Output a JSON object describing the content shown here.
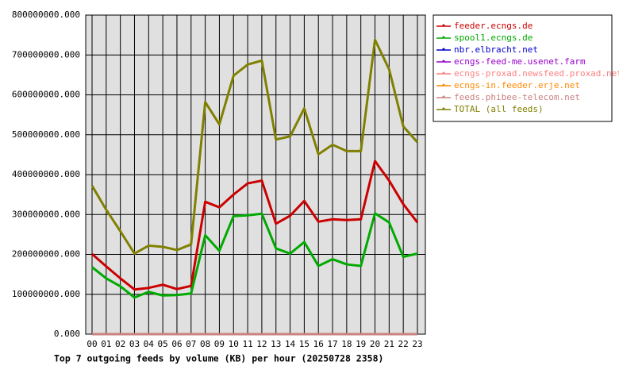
{
  "chart_data": {
    "type": "line",
    "title": "Top 7 outgoing feeds by volume (KB) per hour (20250728 2358)",
    "categories": [
      "00",
      "01",
      "02",
      "03",
      "04",
      "05",
      "06",
      "07",
      "08",
      "09",
      "10",
      "11",
      "12",
      "13",
      "14",
      "15",
      "16",
      "17",
      "18",
      "19",
      "20",
      "21",
      "22",
      "23"
    ],
    "series": [
      {
        "name": "feeder.ecngs.de",
        "color": "#cc0000",
        "values": [
          201000000,
          170000000,
          140000000,
          112000000,
          116000000,
          124000000,
          113000000,
          121000000,
          332000000,
          318000000,
          350000000,
          378000000,
          385000000,
          277000000,
          297000000,
          334000000,
          282000000,
          288000000,
          286000000,
          288000000,
          434000000,
          385000000,
          326000000,
          280000000
        ]
      },
      {
        "name": "spool1.ecngs.de",
        "color": "#00aa00",
        "values": [
          168000000,
          140000000,
          120000000,
          92000000,
          106000000,
          97000000,
          98000000,
          102000000,
          248000000,
          209000000,
          296000000,
          298000000,
          302000000,
          215000000,
          202000000,
          231000000,
          171000000,
          188000000,
          175000000,
          171000000,
          303000000,
          280000000,
          194000000,
          202000000
        ]
      },
      {
        "name": "nbr.elbracht.net",
        "color": "#0000cc",
        "values": [
          0,
          0,
          0,
          0,
          0,
          0,
          0,
          0,
          0,
          0,
          0,
          0,
          0,
          0,
          0,
          0,
          0,
          0,
          0,
          0,
          0,
          0,
          0,
          0
        ]
      },
      {
        "name": "ecngs-feed-me.usenet.farm",
        "color": "#9900cc",
        "values": [
          0,
          0,
          0,
          0,
          0,
          0,
          0,
          0,
          0,
          0,
          0,
          0,
          0,
          0,
          0,
          0,
          0,
          0,
          0,
          0,
          0,
          0,
          0,
          0
        ]
      },
      {
        "name": "ecngs-proxad.newsfeed.proxad.net",
        "color": "#ff8080",
        "values": [
          0,
          0,
          0,
          0,
          0,
          0,
          0,
          0,
          0,
          0,
          0,
          0,
          0,
          0,
          0,
          0,
          0,
          0,
          0,
          0,
          0,
          0,
          0,
          0
        ]
      },
      {
        "name": "ecngs-in.feeder.erje.net",
        "color": "#ff8800",
        "values": [
          0,
          0,
          0,
          0,
          0,
          0,
          0,
          0,
          0,
          0,
          0,
          0,
          0,
          0,
          0,
          0,
          0,
          0,
          0,
          0,
          0,
          0,
          0,
          0
        ]
      },
      {
        "name": "feeds.phibee-telecom.net",
        "color": "#cc8080",
        "values": [
          0,
          0,
          0,
          0,
          0,
          0,
          0,
          0,
          0,
          0,
          0,
          0,
          0,
          0,
          0,
          0,
          0,
          0,
          0,
          0,
          0,
          0,
          0,
          0
        ]
      },
      {
        "name": "TOTAL (all feeds)",
        "color": "#808000",
        "values": [
          372000000,
          312000000,
          258000000,
          202000000,
          222000000,
          219000000,
          211000000,
          225000000,
          582000000,
          526000000,
          648000000,
          676000000,
          686000000,
          488000000,
          496000000,
          566000000,
          451000000,
          475000000,
          459000000,
          459000000,
          738000000,
          664000000,
          521000000,
          481000000
        ]
      }
    ],
    "ylim": [
      0,
      800000000
    ],
    "yticks": [
      {
        "value": 0,
        "label": "0.000"
      },
      {
        "value": 100000000,
        "label": "100000000.000"
      },
      {
        "value": 200000000,
        "label": "200000000.000"
      },
      {
        "value": 300000000,
        "label": "300000000.000"
      },
      {
        "value": 400000000,
        "label": "400000000.000"
      },
      {
        "value": 500000000,
        "label": "500000000.000"
      },
      {
        "value": 600000000,
        "label": "600000000.000"
      },
      {
        "value": 700000000,
        "label": "700000000.000"
      },
      {
        "value": 800000000,
        "label": "800000000.000"
      }
    ],
    "grid": true,
    "legend": "right",
    "background": "#e0e0e0"
  }
}
